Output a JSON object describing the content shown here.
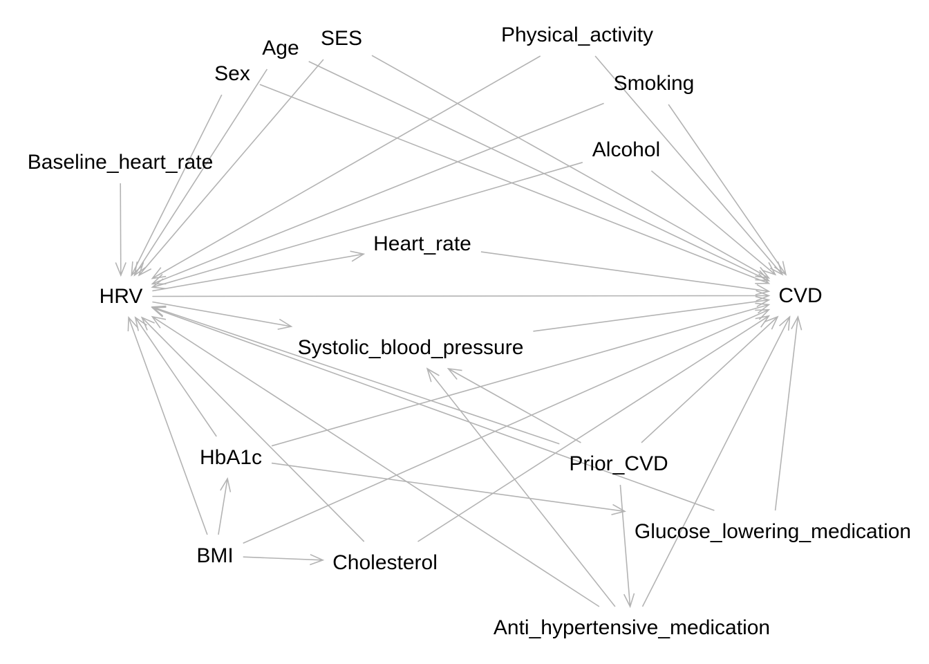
{
  "diagram": {
    "type": "directed-acyclic-graph",
    "edge_color": "#b3b3b3",
    "label_color": "#000000",
    "background": "#ffffff",
    "nodes": [
      {
        "id": "sex",
        "label": "Sex"
      },
      {
        "id": "age",
        "label": "Age"
      },
      {
        "id": "ses",
        "label": "SES"
      },
      {
        "id": "physical_activity",
        "label": "Physical_activity"
      },
      {
        "id": "smoking",
        "label": "Smoking"
      },
      {
        "id": "baseline_heart_rate",
        "label": "Baseline_heart_rate"
      },
      {
        "id": "alcohol",
        "label": "Alcohol"
      },
      {
        "id": "heart_rate",
        "label": "Heart_rate"
      },
      {
        "id": "hrv",
        "label": "HRV"
      },
      {
        "id": "cvd",
        "label": "CVD"
      },
      {
        "id": "systolic_blood_pressure",
        "label": "Systolic_blood_pressure"
      },
      {
        "id": "hba1c",
        "label": "HbA1c"
      },
      {
        "id": "prior_cvd",
        "label": "Prior_CVD"
      },
      {
        "id": "glucose_lowering_medication",
        "label": "Glucose_lowering_medication"
      },
      {
        "id": "bmi",
        "label": "BMI"
      },
      {
        "id": "cholesterol",
        "label": "Cholesterol"
      },
      {
        "id": "anti_hypertensive_medication",
        "label": "Anti_hypertensive_medication"
      }
    ],
    "edges": [
      {
        "from": "baseline_heart_rate",
        "to": "hrv"
      },
      {
        "from": "sex",
        "to": "hrv"
      },
      {
        "from": "age",
        "to": "hrv"
      },
      {
        "from": "ses",
        "to": "hrv"
      },
      {
        "from": "physical_activity",
        "to": "hrv"
      },
      {
        "from": "smoking",
        "to": "hrv"
      },
      {
        "from": "alcohol",
        "to": "hrv"
      },
      {
        "from": "hrv",
        "to": "heart_rate"
      },
      {
        "from": "hrv",
        "to": "cvd"
      },
      {
        "from": "hrv",
        "to": "systolic_blood_pressure"
      },
      {
        "from": "hba1c",
        "to": "hrv"
      },
      {
        "from": "bmi",
        "to": "hrv"
      },
      {
        "from": "cholesterol",
        "to": "hrv"
      },
      {
        "from": "prior_cvd",
        "to": "hrv"
      },
      {
        "from": "glucose_lowering_medication",
        "to": "hrv"
      },
      {
        "from": "anti_hypertensive_medication",
        "to": "hrv"
      },
      {
        "from": "sex",
        "to": "cvd"
      },
      {
        "from": "age",
        "to": "cvd"
      },
      {
        "from": "ses",
        "to": "cvd"
      },
      {
        "from": "physical_activity",
        "to": "cvd"
      },
      {
        "from": "smoking",
        "to": "cvd"
      },
      {
        "from": "alcohol",
        "to": "cvd"
      },
      {
        "from": "heart_rate",
        "to": "cvd"
      },
      {
        "from": "systolic_blood_pressure",
        "to": "cvd"
      },
      {
        "from": "hba1c",
        "to": "cvd"
      },
      {
        "from": "bmi",
        "to": "cvd"
      },
      {
        "from": "cholesterol",
        "to": "cvd"
      },
      {
        "from": "prior_cvd",
        "to": "cvd"
      },
      {
        "from": "glucose_lowering_medication",
        "to": "cvd"
      },
      {
        "from": "anti_hypertensive_medication",
        "to": "cvd"
      },
      {
        "from": "bmi",
        "to": "hba1c"
      },
      {
        "from": "bmi",
        "to": "cholesterol"
      },
      {
        "from": "hba1c",
        "to": "glucose_lowering_medication"
      },
      {
        "from": "prior_cvd",
        "to": "systolic_blood_pressure"
      },
      {
        "from": "prior_cvd",
        "to": "anti_hypertensive_medication"
      },
      {
        "from": "anti_hypertensive_medication",
        "to": "systolic_blood_pressure"
      }
    ]
  }
}
